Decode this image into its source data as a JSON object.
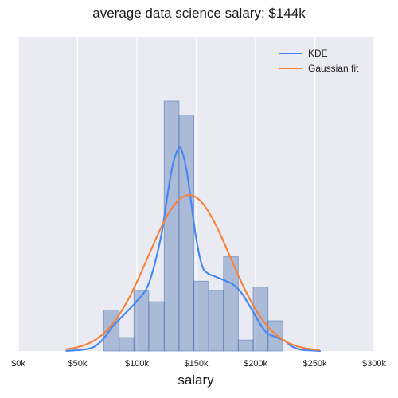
{
  "chart_data": {
    "type": "bar",
    "title": "average data science salary: $144k",
    "xlabel": "salary",
    "ylabel": "",
    "xlim": [
      0,
      300000
    ],
    "x_ticks": [
      {
        "value": 0,
        "label": "$0k"
      },
      {
        "value": 50000,
        "label": "$50k"
      },
      {
        "value": 100000,
        "label": "$100k"
      },
      {
        "value": 150000,
        "label": "$150k"
      },
      {
        "value": 200000,
        "label": "$200k"
      },
      {
        "value": 250000,
        "label": "$250k"
      },
      {
        "value": 300000,
        "label": "$300k"
      }
    ],
    "grid": true,
    "legend_position": "top-right",
    "y_max": 1.0,
    "histogram": {
      "bin_edges": [
        72000,
        85000,
        97500,
        110000,
        123000,
        135500,
        148000,
        160500,
        173000,
        185500,
        198000,
        210500,
        223000
      ],
      "heights": [
        0.164,
        0.054,
        0.243,
        0.197,
        1.0,
        0.944,
        0.279,
        0.243,
        0.377,
        0.044,
        0.256,
        0.121
      ],
      "color": "#4c72b0"
    },
    "series": [
      {
        "name": "KDE",
        "color": "#4287f5",
        "x": [
          40000,
          60000,
          70000,
          80000,
          90000,
          100000,
          110000,
          120000,
          125000,
          130000,
          135000,
          138000,
          142000,
          145000,
          150000,
          155000,
          160000,
          165000,
          170000,
          175000,
          180000,
          185000,
          190000,
          195000,
          200000,
          205000,
          210000,
          215000,
          220000,
          225000,
          230000,
          235000,
          240000,
          255000
        ],
        "y": [
          0.0,
          0.01,
          0.04,
          0.1,
          0.15,
          0.2,
          0.27,
          0.45,
          0.6,
          0.74,
          0.81,
          0.8,
          0.72,
          0.62,
          0.45,
          0.34,
          0.31,
          0.3,
          0.29,
          0.28,
          0.27,
          0.25,
          0.22,
          0.18,
          0.14,
          0.1,
          0.07,
          0.06,
          0.05,
          0.04,
          0.02,
          0.01,
          0.004,
          0.0
        ]
      },
      {
        "name": "Gaussian fit",
        "color": "#f5813a",
        "mean": 144000,
        "std": 34500,
        "peak": 0.624,
        "x_range": [
          40000,
          255000
        ]
      }
    ]
  }
}
